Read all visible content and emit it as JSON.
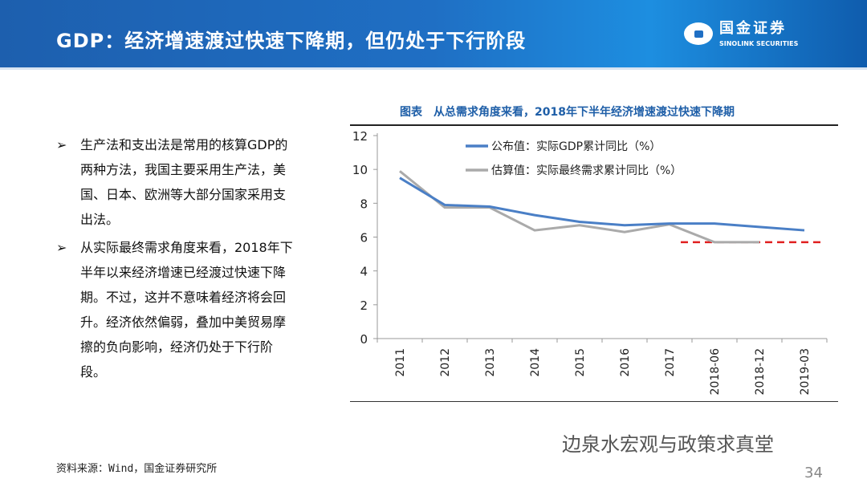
{
  "header": {
    "title": "GDP：经济增速渡过快速下降期，但仍处于下行阶段",
    "logo_cn": "国金证券",
    "logo_en": "SINOLINK SECURITIES"
  },
  "bullets": [
    {
      "mark": "➢",
      "text": "生产法和支出法是常用的核算GDP的两种方法，我国主要采用生产法，美国、日本、欧洲等大部分国家采用支出法。"
    },
    {
      "mark": "➢",
      "text": "从实际最终需求角度来看，2018年下半年以来经济增速已经渡过快速下降期。不过，这并不意味着经济将会回升。经济依然偏弱，叠加中美贸易摩擦的负向影响，经济仍处于下行阶段。"
    }
  ],
  "chart_data": {
    "type": "line",
    "title": "图表　从总需求角度来看，2018年下半年经济增速渡过快速下降期",
    "categories": [
      "2011",
      "2012",
      "2013",
      "2014",
      "2015",
      "2016",
      "2017",
      "2018-06",
      "2018-12",
      "2019-03"
    ],
    "ylim": [
      0,
      12
    ],
    "yticks": [
      "0",
      "2",
      "4",
      "6",
      "8",
      "10",
      "12"
    ],
    "legend_position": "top",
    "series": [
      {
        "name": "公布值：实际GDP累计同比（%）",
        "color": "#4a7fc6",
        "values": [
          9.5,
          7.9,
          7.8,
          7.3,
          6.9,
          6.7,
          6.8,
          6.8,
          6.6,
          6.4
        ]
      },
      {
        "name": "估算值：实际最终需求累计同比（%）",
        "color": "#aaaaaa",
        "values": [
          9.9,
          7.75,
          7.75,
          6.4,
          6.7,
          6.3,
          6.75,
          5.7,
          5.7,
          null
        ]
      }
    ],
    "reference_line": {
      "value": 5.7,
      "color": "#e02020",
      "style": "dashed"
    }
  },
  "footer": {
    "source": "资料来源：Wind，国金证券研究所",
    "watermark": "边泉水宏观与政策求真堂",
    "page": "34"
  }
}
